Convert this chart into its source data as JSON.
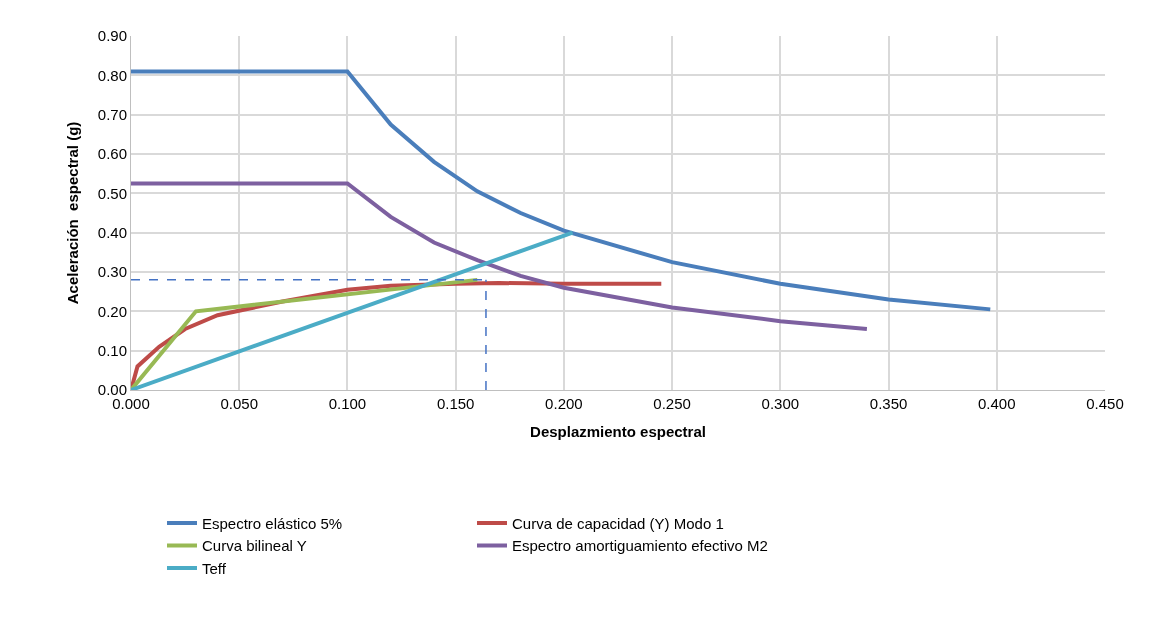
{
  "chart_data": {
    "type": "line",
    "xlabel": "Desplazmiento espectral",
    "ylabel": "Aceleración  espectral (g)",
    "xlim": [
      0,
      0.45
    ],
    "xticks": [
      {
        "value": 0,
        "label": "0.000"
      },
      {
        "value": 0.05,
        "label": "0.050"
      },
      {
        "value": 0.1,
        "label": "0.100"
      },
      {
        "value": 0.15,
        "label": "0.150"
      },
      {
        "value": 0.2,
        "label": "0.200"
      },
      {
        "value": 0.25,
        "label": "0.250"
      },
      {
        "value": 0.3,
        "label": "0.300"
      },
      {
        "value": 0.35,
        "label": "0.350"
      },
      {
        "value": 0.4,
        "label": "0.400"
      },
      {
        "value": 0.45,
        "label": "0.450"
      }
    ],
    "ylim": [
      0,
      0.9
    ],
    "yticks": [
      {
        "value": 0,
        "label": "0.00"
      },
      {
        "value": 0.1,
        "label": "0.10"
      },
      {
        "value": 0.2,
        "label": "0.20"
      },
      {
        "value": 0.3,
        "label": "0.30"
      },
      {
        "value": 0.4,
        "label": "0.40"
      },
      {
        "value": 0.5,
        "label": "0.50"
      },
      {
        "value": 0.6,
        "label": "0.60"
      },
      {
        "value": 0.7,
        "label": "0.70"
      },
      {
        "value": 0.8,
        "label": "0.80"
      },
      {
        "value": 0.9,
        "label": "0.90"
      }
    ],
    "grid": true,
    "legend": "bottom",
    "marker": "none",
    "line_style": "solid",
    "series": [
      {
        "name": "Espectro elástico 5%",
        "color": "#4a7ebb",
        "x": [
          0,
          0.1,
          0.12,
          0.14,
          0.16,
          0.18,
          0.2,
          0.25,
          0.3,
          0.35,
          0.397
        ],
        "values": [
          0.81,
          0.81,
          0.675,
          0.58,
          0.505,
          0.45,
          0.405,
          0.325,
          0.27,
          0.23,
          0.205
        ]
      },
      {
        "name": "Curva de capacidad (Y) Modo 1",
        "color": "#be4b48",
        "x": [
          0,
          0.003,
          0.013,
          0.025,
          0.04,
          0.07,
          0.1,
          0.12,
          0.15,
          0.17,
          0.2,
          0.245
        ],
        "values": [
          0,
          0.06,
          0.11,
          0.155,
          0.19,
          0.225,
          0.255,
          0.265,
          0.27,
          0.272,
          0.27,
          0.27
        ]
      },
      {
        "name": "Curva bilineal Y",
        "color": "#98b954",
        "x": [
          0,
          0.03,
          0.16
        ],
        "values": [
          0,
          0.2,
          0.28
        ]
      },
      {
        "name": "Espectro amortiguamiento efectivo M2",
        "color": "#7d60a0",
        "x": [
          0,
          0.1,
          0.12,
          0.14,
          0.16,
          0.18,
          0.2,
          0.25,
          0.3,
          0.34
        ],
        "values": [
          0.525,
          0.525,
          0.44,
          0.375,
          0.33,
          0.29,
          0.26,
          0.21,
          0.175,
          0.155
        ]
      },
      {
        "name": "Teff",
        "color": "#4bacc6",
        "x": [
          0,
          0.204
        ],
        "values": [
          0,
          0.4
        ]
      }
    ],
    "ref_lines": [
      {
        "axis": "y",
        "value": 0.28,
        "color": "#4472c4",
        "line_style": "dashed"
      },
      {
        "axis": "x",
        "value": 0.164,
        "color": "#4472c4",
        "line_style": "dashed"
      }
    ]
  }
}
